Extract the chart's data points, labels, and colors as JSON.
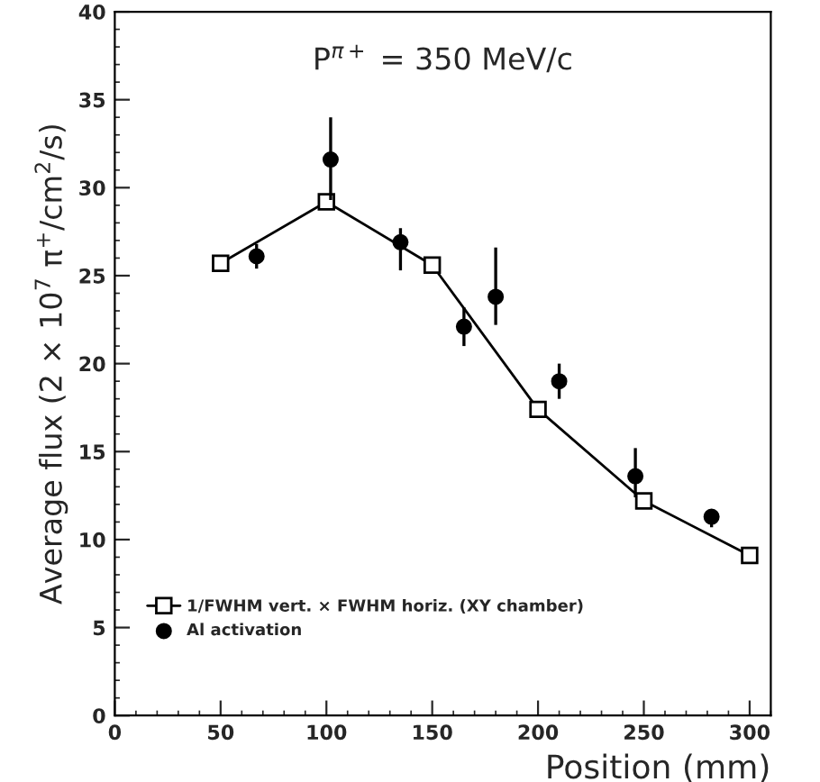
{
  "chart_data": {
    "type": "line",
    "title": "P$^{π+}$ = 350 MeV/c",
    "xlabel": "Position (mm)",
    "ylabel": "Average flux (2 × 10$^{7}$ π$^{+}$/cm$^{2}$/s)",
    "xlim": [
      0,
      310
    ],
    "ylim": [
      0,
      40
    ],
    "xticks": [
      0,
      50,
      100,
      150,
      200,
      250,
      300
    ],
    "yticks": [
      0,
      5,
      10,
      15,
      20,
      25,
      30,
      35,
      40
    ],
    "grid": false,
    "legend": "bottom left",
    "series": [
      {
        "name": "1/FWHM vert. × FWHM horiz. (XY chamber)",
        "marker": "square",
        "color": "#000000",
        "x": [
          50,
          100,
          150,
          200,
          250,
          300
        ],
        "values": [
          25.7,
          29.2,
          25.6,
          17.4,
          12.2,
          9.1
        ]
      },
      {
        "name": "Al activation",
        "type": "scatter",
        "marker": "circle",
        "color": "#000000",
        "x": [
          67,
          102,
          135,
          165,
          180,
          210,
          246,
          282
        ],
        "values": [
          26.1,
          31.6,
          26.9,
          22.1,
          23.8,
          19.0,
          13.6,
          11.3
        ],
        "errors": [
          [
            25.4,
            26.8
          ],
          [
            29.3,
            34.0
          ],
          [
            25.3,
            27.7
          ],
          [
            21.0,
            23.2
          ],
          [
            22.2,
            26.6
          ],
          [
            18.0,
            20.0
          ],
          [
            12.4,
            15.2
          ],
          [
            10.7,
            11.7
          ]
        ]
      }
    ]
  }
}
